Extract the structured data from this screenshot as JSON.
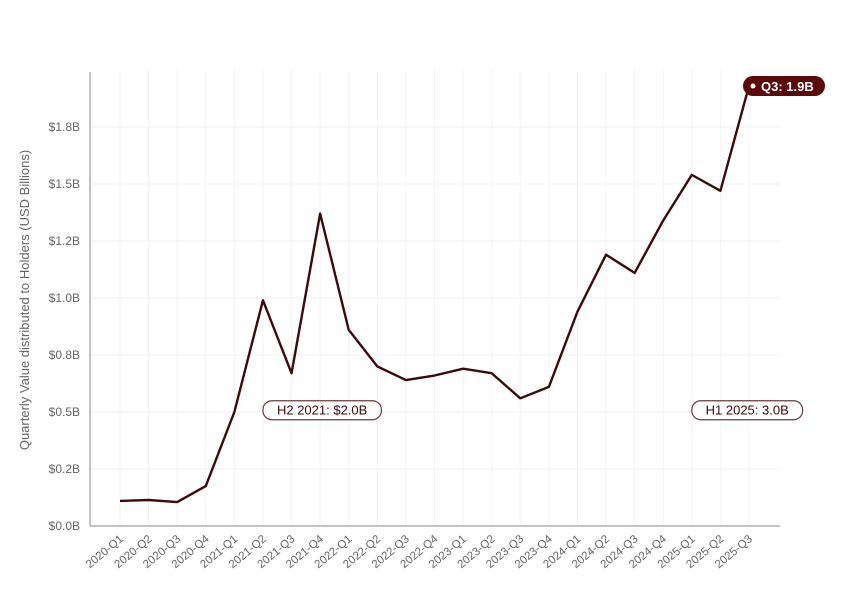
{
  "chart_data": {
    "type": "line",
    "title": "",
    "xlabel": "",
    "ylabel": "Quarterly Value distributed to Holders (USD Billions)",
    "ylim": [
      0,
      2.0
    ],
    "grid": true,
    "legend": "none",
    "y_ticks": [
      0,
      0.25,
      0.5,
      0.75,
      1.0,
      1.25,
      1.5,
      1.75
    ],
    "y_tick_labels": [
      "$0.0B",
      "$0.2B",
      "$0.5B",
      "$0.8B",
      "$1.0B",
      "$1.2B",
      "$1.5B",
      "$1.8B"
    ],
    "categories": [
      "2020-Q1",
      "2020-Q2",
      "2020-Q3",
      "2020-Q4",
      "2021-Q1",
      "2021-Q2",
      "2021-Q3",
      "2021-Q4",
      "2022-Q1",
      "2022-Q2",
      "2022-Q3",
      "2022-Q4",
      "2023-Q1",
      "2023-Q2",
      "2023-Q3",
      "2023-Q4",
      "2024-Q1",
      "2024-Q2",
      "2024-Q3",
      "2024-Q4",
      "2025-Q1",
      "2025-Q2",
      "2025-Q3"
    ],
    "values": [
      0.11,
      0.114,
      0.105,
      0.175,
      0.5,
      0.99,
      0.67,
      1.37,
      0.86,
      0.7,
      0.64,
      0.66,
      0.69,
      0.67,
      0.56,
      0.61,
      0.94,
      1.19,
      1.11,
      1.34,
      1.54,
      1.47,
      1.93
    ],
    "line_color": "#3d0a0a",
    "annotations": [
      {
        "text": "H2 2021: $2.0B",
        "category": "2021-Q2",
        "y": 0.51,
        "style": "outline"
      },
      {
        "text": "H1 2025: 3.0B",
        "category": "2025-Q1",
        "y": 0.51,
        "style": "outline"
      },
      {
        "text": "Q3: 1.9B",
        "category": "2025-Q3",
        "y": 1.93,
        "style": "filled"
      }
    ],
    "accent_color": "#5a0a0a"
  }
}
